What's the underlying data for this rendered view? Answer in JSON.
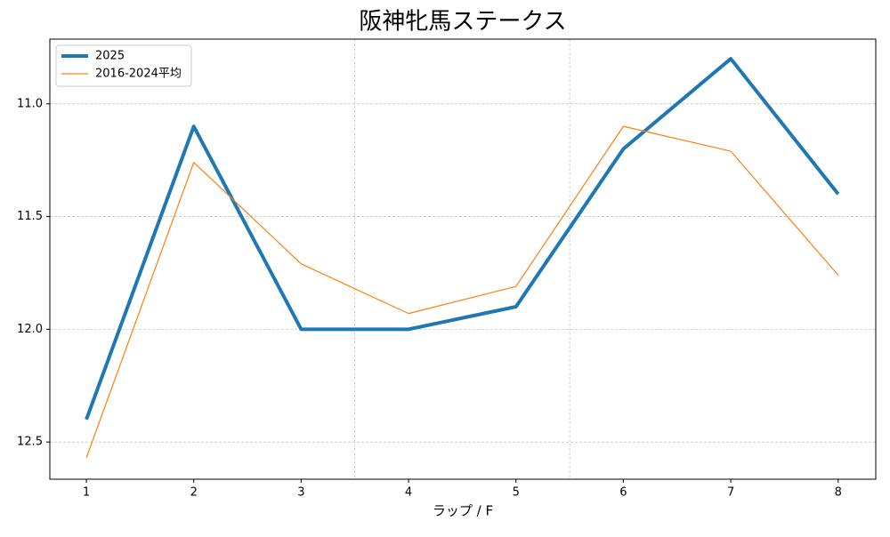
{
  "chart_data": {
    "type": "line",
    "title": "阪神牝馬ステークス",
    "x_label": "ラップ / F",
    "x": [
      1,
      2,
      3,
      4,
      5,
      6,
      7,
      8
    ],
    "series": [
      {
        "name": "2025",
        "color": "#1f77b4",
        "width": 4,
        "values": [
          12.4,
          11.1,
          12.0,
          12.0,
          11.9,
          11.2,
          10.8,
          11.4
        ]
      },
      {
        "name": "2016-2024平均",
        "color": "#ff7f0e",
        "width": 1.2,
        "values": [
          12.57,
          11.26,
          11.71,
          11.93,
          11.81,
          11.1,
          11.21,
          11.76
        ]
      }
    ],
    "xlim": [
      0.66,
      8.35
    ],
    "xticks": [
      1,
      2,
      3,
      4,
      5,
      6,
      7,
      8
    ],
    "ylim": [
      12.665,
      10.713
    ],
    "yticks": [
      {
        "value": 11.0,
        "label": "11.0"
      },
      {
        "value": 11.5,
        "label": "11.5"
      },
      {
        "value": 12.0,
        "label": "12.0"
      },
      {
        "value": 12.5,
        "label": "12.5"
      }
    ],
    "vlines": [
      3.5,
      5.5
    ],
    "grid": true,
    "legend": "upper-left"
  }
}
